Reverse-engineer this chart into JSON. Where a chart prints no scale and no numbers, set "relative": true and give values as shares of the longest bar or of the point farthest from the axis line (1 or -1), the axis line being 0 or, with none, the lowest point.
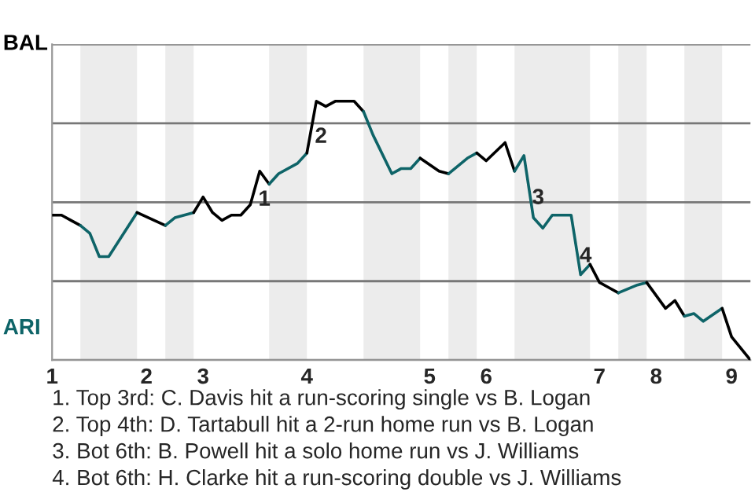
{
  "chart_data": {
    "type": "line",
    "relative": true,
    "categories": [
      "1",
      null,
      null,
      null,
      null,
      null,
      null,
      null,
      null,
      null,
      "2",
      null,
      null,
      null,
      null,
      null,
      "3",
      null,
      null,
      null,
      null,
      null,
      null,
      null,
      null,
      null,
      null,
      "4",
      null,
      null,
      null,
      null,
      null,
      null,
      null,
      null,
      null,
      null,
      null,
      null,
      "5",
      null,
      null,
      null,
      null,
      null,
      "6",
      null,
      null,
      null,
      null,
      null,
      null,
      null,
      null,
      null,
      null,
      null,
      "7",
      null,
      null,
      null,
      null,
      null,
      "8",
      null,
      null,
      null,
      null,
      null,
      null,
      null,
      "9",
      null,
      null
    ],
    "grid": "y",
    "legend": false,
    "marker": "none",
    "line_style": "solid",
    "series": [
      {
        "color": "#000000",
        "values": [
          0.56,
          0.56,
          0.54,
          0.52,
          null,
          null,
          null,
          null,
          null,
          null,
          null,
          null,
          null,
          null,
          null,
          null,
          null,
          null,
          null,
          null,
          null,
          null,
          null,
          null,
          null,
          null,
          null,
          null,
          null,
          null,
          null,
          null,
          null,
          null,
          null,
          null,
          null,
          null,
          null,
          null,
          null,
          null,
          null,
          null,
          null,
          null,
          null,
          null,
          null,
          null,
          null,
          null,
          null,
          null,
          null,
          null,
          null,
          null,
          null,
          null,
          null,
          null,
          null,
          null,
          null,
          null,
          null,
          null,
          null,
          null,
          null,
          null,
          null,
          null,
          null
        ]
      },
      {
        "color": "#0e6468",
        "values": [
          null,
          null,
          null,
          0.52,
          0.49,
          0.4,
          0.4,
          null,
          null,
          0.57,
          null,
          null,
          null,
          null,
          null,
          null,
          null,
          null,
          null,
          null,
          null,
          null,
          null,
          null,
          null,
          null,
          null,
          null,
          null,
          null,
          null,
          null,
          null,
          null,
          null,
          null,
          null,
          null,
          null,
          null,
          null,
          null,
          null,
          null,
          null,
          null,
          null,
          null,
          null,
          null,
          null,
          null,
          null,
          null,
          null,
          null,
          null,
          null,
          null,
          null,
          null,
          null,
          null,
          null,
          null,
          null,
          null,
          null,
          null,
          null,
          null,
          null,
          null,
          null,
          null
        ]
      },
      {
        "color": "#000000",
        "values": [
          null,
          null,
          null,
          null,
          null,
          null,
          null,
          null,
          null,
          0.57,
          null,
          null,
          0.52,
          null,
          null,
          null,
          null,
          null,
          null,
          null,
          null,
          null,
          null,
          null,
          null,
          null,
          null,
          null,
          null,
          null,
          null,
          null,
          null,
          null,
          null,
          null,
          null,
          null,
          null,
          null,
          null,
          null,
          null,
          null,
          null,
          null,
          null,
          null,
          null,
          null,
          null,
          null,
          null,
          null,
          null,
          null,
          null,
          null,
          null,
          null,
          null,
          null,
          null,
          null,
          null,
          null,
          null,
          null,
          null,
          null,
          null,
          null,
          null,
          null,
          null
        ]
      },
      {
        "color": "#0e6468",
        "values": [
          null,
          null,
          null,
          null,
          null,
          null,
          null,
          null,
          null,
          null,
          null,
          null,
          0.52,
          0.55,
          null,
          0.57,
          null,
          null,
          null,
          null,
          null,
          null,
          null,
          null,
          null,
          null,
          null,
          null,
          null,
          null,
          null,
          null,
          null,
          null,
          null,
          null,
          null,
          null,
          null,
          null,
          null,
          null,
          null,
          null,
          null,
          null,
          null,
          null,
          null,
          null,
          null,
          null,
          null,
          null,
          null,
          null,
          null,
          null,
          null,
          null,
          null,
          null,
          null,
          null,
          null,
          null,
          null,
          null,
          null,
          null,
          null,
          null,
          null,
          null,
          null
        ]
      },
      {
        "color": "#000000",
        "values": [
          null,
          null,
          null,
          null,
          null,
          null,
          null,
          null,
          null,
          null,
          null,
          null,
          null,
          null,
          null,
          0.57,
          0.63,
          0.57,
          0.54,
          0.56,
          0.56,
          0.6,
          0.73,
          0.68,
          null,
          null,
          null,
          null,
          null,
          null,
          null,
          null,
          null,
          null,
          null,
          null,
          null,
          null,
          null,
          null,
          null,
          null,
          null,
          null,
          null,
          null,
          null,
          null,
          null,
          null,
          null,
          null,
          null,
          null,
          null,
          null,
          null,
          null,
          null,
          null,
          null,
          null,
          null,
          null,
          null,
          null,
          null,
          null,
          null,
          null,
          null,
          null,
          null,
          null,
          null
        ]
      },
      {
        "color": "#0e6468",
        "values": [
          null,
          null,
          null,
          null,
          null,
          null,
          null,
          null,
          null,
          null,
          null,
          null,
          null,
          null,
          null,
          null,
          null,
          null,
          null,
          null,
          null,
          null,
          null,
          0.68,
          0.72,
          null,
          0.76,
          0.8,
          null,
          null,
          null,
          null,
          null,
          null,
          null,
          null,
          null,
          null,
          null,
          null,
          null,
          null,
          null,
          null,
          null,
          null,
          null,
          null,
          null,
          null,
          null,
          null,
          null,
          null,
          null,
          null,
          null,
          null,
          null,
          null,
          null,
          null,
          null,
          null,
          null,
          null,
          null,
          null,
          null,
          null,
          null,
          null,
          null,
          null,
          null
        ]
      },
      {
        "color": "#000000",
        "values": [
          null,
          null,
          null,
          null,
          null,
          null,
          null,
          null,
          null,
          null,
          null,
          null,
          null,
          null,
          null,
          null,
          null,
          null,
          null,
          null,
          null,
          null,
          null,
          null,
          null,
          null,
          null,
          0.8,
          1,
          0.98,
          1,
          null,
          1,
          0.96,
          null,
          null,
          null,
          null,
          null,
          null,
          null,
          null,
          null,
          null,
          null,
          null,
          null,
          null,
          null,
          null,
          null,
          null,
          null,
          null,
          null,
          null,
          null,
          null,
          null,
          null,
          null,
          null,
          null,
          null,
          null,
          null,
          null,
          null,
          null,
          null,
          null,
          null,
          null,
          null,
          null
        ]
      },
      {
        "color": "#0e6468",
        "values": [
          null,
          null,
          null,
          null,
          null,
          null,
          null,
          null,
          null,
          null,
          null,
          null,
          null,
          null,
          null,
          null,
          null,
          null,
          null,
          null,
          null,
          null,
          null,
          null,
          null,
          null,
          null,
          null,
          null,
          null,
          null,
          null,
          null,
          0.96,
          0.87,
          null,
          0.72,
          0.74,
          0.74,
          0.78,
          null,
          null,
          null,
          null,
          null,
          null,
          null,
          null,
          null,
          null,
          null,
          null,
          null,
          null,
          null,
          null,
          null,
          null,
          null,
          null,
          null,
          null,
          null,
          null,
          null,
          null,
          null,
          null,
          null,
          null,
          null,
          null,
          null,
          null,
          null
        ]
      },
      {
        "color": "#000000",
        "values": [
          null,
          null,
          null,
          null,
          null,
          null,
          null,
          null,
          null,
          null,
          null,
          null,
          null,
          null,
          null,
          null,
          null,
          null,
          null,
          null,
          null,
          null,
          null,
          null,
          null,
          null,
          null,
          null,
          null,
          null,
          null,
          null,
          null,
          null,
          null,
          null,
          null,
          null,
          null,
          0.78,
          null,
          0.73,
          0.72,
          null,
          null,
          null,
          null,
          null,
          null,
          null,
          null,
          null,
          null,
          null,
          null,
          null,
          null,
          null,
          null,
          null,
          null,
          null,
          null,
          null,
          null,
          null,
          null,
          null,
          null,
          null,
          null,
          null,
          null,
          null,
          null
        ]
      },
      {
        "color": "#0e6468",
        "values": [
          null,
          null,
          null,
          null,
          null,
          null,
          null,
          null,
          null,
          null,
          null,
          null,
          null,
          null,
          null,
          null,
          null,
          null,
          null,
          null,
          null,
          null,
          null,
          null,
          null,
          null,
          null,
          null,
          null,
          null,
          null,
          null,
          null,
          null,
          null,
          null,
          null,
          null,
          null,
          null,
          null,
          null,
          0.72,
          null,
          0.78,
          0.8,
          null,
          null,
          null,
          null,
          null,
          null,
          null,
          null,
          null,
          null,
          null,
          null,
          null,
          null,
          null,
          null,
          null,
          null,
          null,
          null,
          null,
          null,
          null,
          null,
          null,
          null,
          null,
          null,
          null
        ]
      },
      {
        "color": "#000000",
        "values": [
          null,
          null,
          null,
          null,
          null,
          null,
          null,
          null,
          null,
          null,
          null,
          null,
          null,
          null,
          null,
          null,
          null,
          null,
          null,
          null,
          null,
          null,
          null,
          null,
          null,
          null,
          null,
          null,
          null,
          null,
          null,
          null,
          null,
          null,
          null,
          null,
          null,
          null,
          null,
          null,
          null,
          null,
          null,
          null,
          null,
          0.8,
          0.77,
          null,
          0.84,
          0.73,
          null,
          null,
          null,
          null,
          null,
          null,
          null,
          null,
          null,
          null,
          null,
          null,
          null,
          null,
          null,
          null,
          null,
          null,
          null,
          null,
          null,
          null,
          null,
          null,
          null
        ]
      },
      {
        "color": "#0e6468",
        "values": [
          null,
          null,
          null,
          null,
          null,
          null,
          null,
          null,
          null,
          null,
          null,
          null,
          null,
          null,
          null,
          null,
          null,
          null,
          null,
          null,
          null,
          null,
          null,
          null,
          null,
          null,
          null,
          null,
          null,
          null,
          null,
          null,
          null,
          null,
          null,
          null,
          null,
          null,
          null,
          null,
          null,
          null,
          null,
          null,
          null,
          null,
          null,
          null,
          null,
          0.73,
          0.79,
          0.55,
          0.51,
          0.56,
          null,
          0.56,
          0.33,
          0.37,
          null,
          null,
          null,
          null,
          null,
          null,
          null,
          null,
          null,
          null,
          null,
          null,
          null,
          null,
          null,
          null,
          null
        ]
      },
      {
        "color": "#000000",
        "values": [
          null,
          null,
          null,
          null,
          null,
          null,
          null,
          null,
          null,
          null,
          null,
          null,
          null,
          null,
          null,
          null,
          null,
          null,
          null,
          null,
          null,
          null,
          null,
          null,
          null,
          null,
          null,
          null,
          null,
          null,
          null,
          null,
          null,
          null,
          null,
          null,
          null,
          null,
          null,
          null,
          null,
          null,
          null,
          null,
          null,
          null,
          null,
          null,
          null,
          null,
          null,
          null,
          null,
          null,
          null,
          null,
          null,
          0.37,
          0.3,
          0.28,
          0.26,
          null,
          null,
          null,
          null,
          null,
          null,
          null,
          null,
          null,
          null,
          null,
          null,
          null,
          null
        ]
      },
      {
        "color": "#0e6468",
        "values": [
          null,
          null,
          null,
          null,
          null,
          null,
          null,
          null,
          null,
          null,
          null,
          null,
          null,
          null,
          null,
          null,
          null,
          null,
          null,
          null,
          null,
          null,
          null,
          null,
          null,
          null,
          null,
          null,
          null,
          null,
          null,
          null,
          null,
          null,
          null,
          null,
          null,
          null,
          null,
          null,
          null,
          null,
          null,
          null,
          null,
          null,
          null,
          null,
          null,
          null,
          null,
          null,
          null,
          null,
          null,
          null,
          null,
          null,
          null,
          null,
          0.26,
          null,
          0.29,
          0.3,
          null,
          null,
          null,
          null,
          null,
          null,
          null,
          null,
          null,
          null,
          null
        ]
      },
      {
        "color": "#000000",
        "values": [
          null,
          null,
          null,
          null,
          null,
          null,
          null,
          null,
          null,
          null,
          null,
          null,
          null,
          null,
          null,
          null,
          null,
          null,
          null,
          null,
          null,
          null,
          null,
          null,
          null,
          null,
          null,
          null,
          null,
          null,
          null,
          null,
          null,
          null,
          null,
          null,
          null,
          null,
          null,
          null,
          null,
          null,
          null,
          null,
          null,
          null,
          null,
          null,
          null,
          null,
          null,
          null,
          null,
          null,
          null,
          null,
          null,
          null,
          null,
          null,
          null,
          null,
          null,
          0.3,
          null,
          0.2,
          0.23,
          0.17,
          null,
          null,
          null,
          null,
          null,
          null,
          null
        ]
      },
      {
        "color": "#0e6468",
        "values": [
          null,
          null,
          null,
          null,
          null,
          null,
          null,
          null,
          null,
          null,
          null,
          null,
          null,
          null,
          null,
          null,
          null,
          null,
          null,
          null,
          null,
          null,
          null,
          null,
          null,
          null,
          null,
          null,
          null,
          null,
          null,
          null,
          null,
          null,
          null,
          null,
          null,
          null,
          null,
          null,
          null,
          null,
          null,
          null,
          null,
          null,
          null,
          null,
          null,
          null,
          null,
          null,
          null,
          null,
          null,
          null,
          null,
          null,
          null,
          null,
          null,
          null,
          null,
          null,
          null,
          null,
          null,
          0.17,
          0.18,
          0.15,
          null,
          0.2,
          null,
          null,
          null
        ]
      },
      {
        "color": "#000000",
        "values": [
          null,
          null,
          null,
          null,
          null,
          null,
          null,
          null,
          null,
          null,
          null,
          null,
          null,
          null,
          null,
          null,
          null,
          null,
          null,
          null,
          null,
          null,
          null,
          null,
          null,
          null,
          null,
          null,
          null,
          null,
          null,
          null,
          null,
          null,
          null,
          null,
          null,
          null,
          null,
          null,
          null,
          null,
          null,
          null,
          null,
          null,
          null,
          null,
          null,
          null,
          null,
          null,
          null,
          null,
          null,
          null,
          null,
          null,
          null,
          null,
          null,
          null,
          null,
          null,
          null,
          null,
          null,
          null,
          null,
          null,
          null,
          0.2,
          0.09,
          null,
          0
        ]
      }
    ],
    "annotations": [
      "1",
      "2",
      "3",
      "4",
      "BAL",
      "ARI",
      "1. Top 3rd: C. Davis hit a run-scoring single vs B. Logan",
      "2. Top 4th: D. Tartabull hit a 2-run home run vs B. Logan",
      "3. Bot 6th: B. Powell hit a solo home run vs J. Williams",
      "4. Bot 6th: H. Clarke hit a run-scoring double vs J. Williams"
    ]
  }
}
